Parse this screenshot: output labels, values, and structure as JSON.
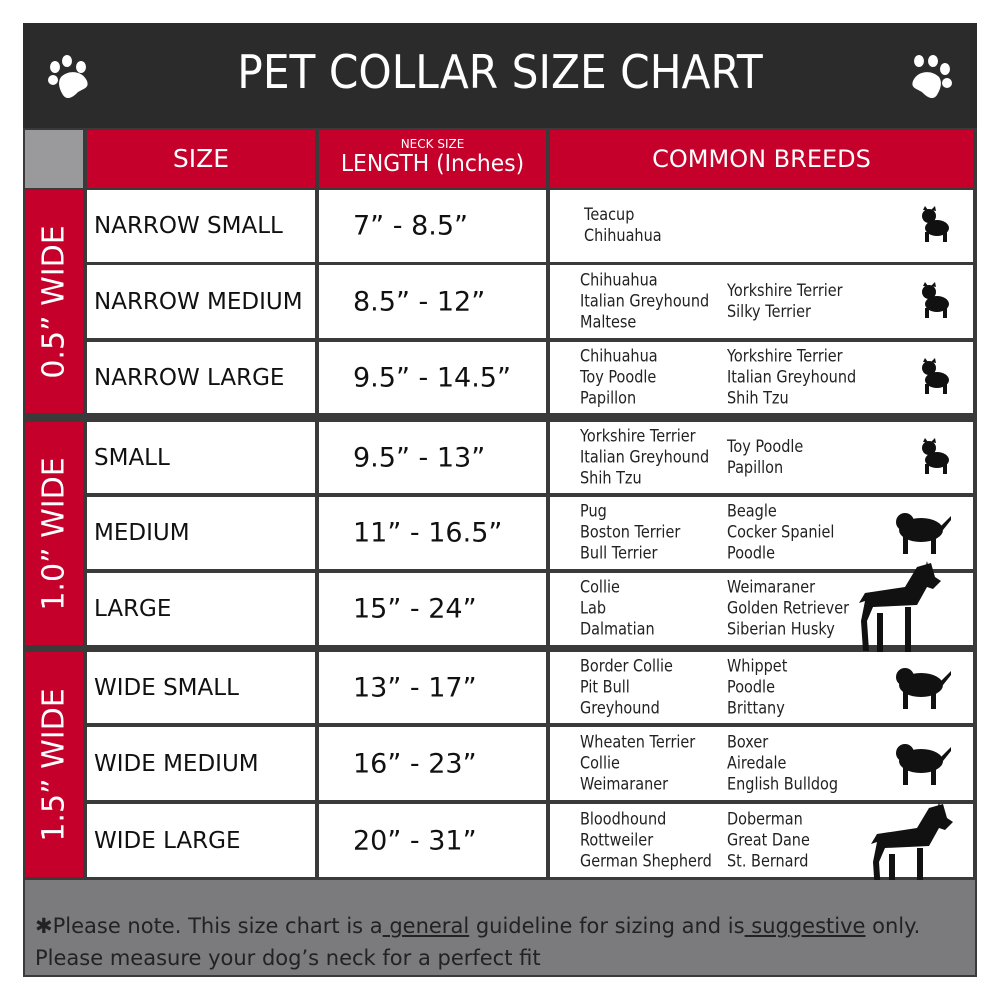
{
  "title": "PET COLLAR SIZE CHART",
  "icons": {
    "left": "paw-icon",
    "right": "paw-icon"
  },
  "colors": {
    "header_bg": "#2b2b2b",
    "accent_red": "#c4002b",
    "footer_bg": "#7b7b7d"
  },
  "columns": {
    "size": "SIZE",
    "length_small": "NECK SIZE",
    "length": "LENGTH (Inches)",
    "breeds": "COMMON BREEDS"
  },
  "groups": [
    {
      "label": "0.5” WIDE",
      "rows": [
        {
          "size": "NARROW SMALL",
          "length": "7” - 8.5”",
          "breeds_col1": [
            "Teacup",
            "Chihuahua"
          ],
          "breeds_col2": [],
          "icon": "yorkie-silhouette-icon"
        },
        {
          "size": "NARROW MEDIUM",
          "length": "8.5” - 12”",
          "breeds_col1": [
            "Chihuahua",
            "Italian Greyhound",
            "Maltese"
          ],
          "breeds_col2": [
            "Yorkshire Terrier",
            "Silky Terrier"
          ],
          "icon": "chihuahua-silhouette-icon"
        },
        {
          "size": "NARROW LARGE",
          "length": "9.5” - 14.5”",
          "breeds_col1": [
            "Chihuahua",
            "Toy Poodle",
            "Papillon"
          ],
          "breeds_col2": [
            "Yorkshire Terrier",
            "Italian Greyhound",
            "Shih Tzu"
          ],
          "icon": "pomeranian-silhouette-icon"
        }
      ]
    },
    {
      "label": "1.0” WIDE",
      "rows": [
        {
          "size": "SMALL",
          "length": "9.5” - 13”",
          "breeds_col1": [
            "Yorkshire Terrier",
            "Italian Greyhound",
            "Shih Tzu"
          ],
          "breeds_col2": [
            "Toy Poodle",
            "Papillon"
          ],
          "icon": "pomeranian-silhouette-icon"
        },
        {
          "size": "MEDIUM",
          "length": "11” - 16.5”",
          "breeds_col1": [
            "Pug",
            "Boston Terrier",
            "Bull Terrier"
          ],
          "breeds_col2": [
            "Beagle",
            "Cocker Spaniel",
            "Poodle"
          ],
          "icon": "dachshund-silhouette-icon"
        },
        {
          "size": "LARGE",
          "length": "15” - 24”",
          "breeds_col1": [
            "Collie",
            "Lab",
            "Dalmatian"
          ],
          "breeds_col2": [
            "Weimaraner",
            "Golden Retriever",
            "Siberian Husky"
          ],
          "icon": "shepherd-silhouette-icon"
        }
      ]
    },
    {
      "label": "1.5” WIDE",
      "rows": [
        {
          "size": "WIDE SMALL",
          "length": "13” - 17”",
          "breeds_col1": [
            "Border Collie",
            "Pit Bull",
            "Greyhound"
          ],
          "breeds_col2": [
            "Whippet",
            "Poodle",
            "Brittany"
          ],
          "icon": "bulldog-silhouette-icon"
        },
        {
          "size": "WIDE MEDIUM",
          "length": "16” - 23”",
          "breeds_col1": [
            "Wheaten Terrier",
            "Collie",
            "Weimaraner"
          ],
          "breeds_col2": [
            "Boxer",
            "Airedale",
            "English Bulldog"
          ],
          "icon": "pitbull-silhouette-icon"
        },
        {
          "size": "WIDE LARGE",
          "length": "20” - 31”",
          "breeds_col1": [
            "Bloodhound",
            "Rottweiler",
            "German Shepherd"
          ],
          "breeds_col2": [
            "Doberman",
            "Great Dane",
            "St. Bernard"
          ],
          "icon": "doberman-silhouette-icon"
        }
      ]
    }
  ],
  "footer": {
    "prefix": "✱Please note. This size chart is a",
    "general": " general",
    "middle": " guideline for sizing and is",
    "suggestive": " suggestive",
    "suffix": " only.",
    "line2": "Please measure your dog’s neck for a perfect fit"
  }
}
